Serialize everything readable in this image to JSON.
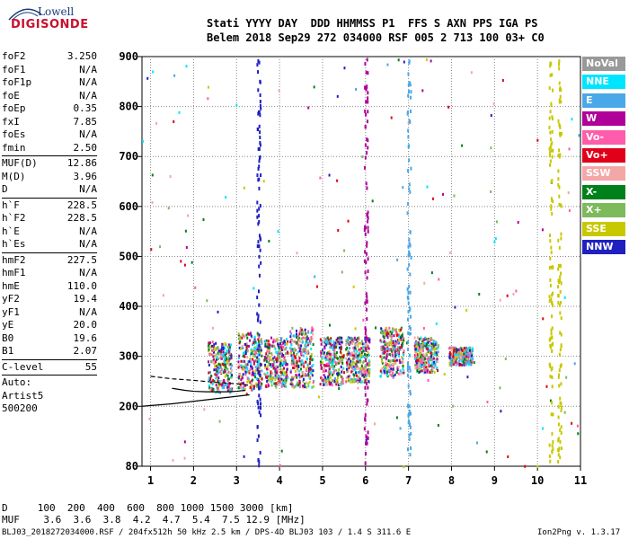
{
  "logo": {
    "line1": "Lowell",
    "line2": "DIGISONDE"
  },
  "header": {
    "line1": "Stati YYYY DAY  DDD HHMMSS P1  FFS S AXN PPS IGA PS",
    "line2": "Belem 2018 Sep29 272 034000 RSF 005 2 713 100 03+ C0"
  },
  "params_group1": [
    {
      "label": "foF2",
      "value": "3.250"
    },
    {
      "label": "foF1",
      "value": "N/A"
    },
    {
      "label": "foF1p",
      "value": "N/A"
    },
    {
      "label": "foE",
      "value": "N/A"
    },
    {
      "label": "foEp",
      "value": "0.35"
    },
    {
      "label": "fxI",
      "value": "7.85"
    },
    {
      "label": "foEs",
      "value": "N/A"
    },
    {
      "label": "fmin",
      "value": "2.50"
    }
  ],
  "params_group2": [
    {
      "label": "MUF(D)",
      "value": "12.86"
    },
    {
      "label": "M(D)",
      "value": "3.96"
    },
    {
      "label": "D",
      "value": "N/A"
    }
  ],
  "params_group3": [
    {
      "label": "h`F",
      "value": "228.5"
    },
    {
      "label": "h`F2",
      "value": "228.5"
    },
    {
      "label": "h`E",
      "value": "N/A"
    },
    {
      "label": "h`Es",
      "value": "N/A"
    }
  ],
  "params_group4": [
    {
      "label": "hmF2",
      "value": "227.5"
    },
    {
      "label": "hmF1",
      "value": "N/A"
    },
    {
      "label": "hmE",
      "value": "110.0"
    },
    {
      "label": "yF2",
      "value": "19.4"
    },
    {
      "label": "yF1",
      "value": "N/A"
    },
    {
      "label": "yE",
      "value": "20.0"
    },
    {
      "label": "B0",
      "value": "19.6"
    },
    {
      "label": "B1",
      "value": "2.07"
    }
  ],
  "params_group5": [
    {
      "label": "C-level",
      "value": "55"
    }
  ],
  "auto_lines": [
    "Auto:",
    "Artist5",
    "500200"
  ],
  "footer": {
    "d_line": "D     100  200  400  600  800 1000 1500 3000 [km]",
    "muf_line": "MUF    3.6  3.6  3.8  4.2  4.7  5.4  7.5 12.9 [MHz]",
    "info_left": "BLJ03_2018272034000.RSF / 204fx512h 50 kHz 2.5 km / DPS-4D BLJ03 103 / 1.4 S 311.6 E",
    "info_right": "Ion2Png v. 1.3.17"
  },
  "legend": [
    {
      "label": "NoVal",
      "color": "#999999"
    },
    {
      "label": "NNE",
      "color": "#00e5ff"
    },
    {
      "label": "E",
      "color": "#4aa8e8"
    },
    {
      "label": "W",
      "color": "#b0009a"
    },
    {
      "label": "Vo-",
      "color": "#ff5cab"
    },
    {
      "label": "Vo+",
      "color": "#e0001a"
    },
    {
      "label": "SSW",
      "color": "#f4a7a7"
    },
    {
      "label": "X-",
      "color": "#00801a"
    },
    {
      "label": "X+",
      "color": "#7cba5c"
    },
    {
      "label": "SSE",
      "color": "#c8c800"
    },
    {
      "label": "NNW",
      "color": "#2020c0"
    }
  ],
  "chart_data": {
    "type": "scatter",
    "xlim": [
      0.8,
      11.0
    ],
    "ylim": [
      80,
      900
    ],
    "x_ticks": [
      1,
      2,
      3,
      4,
      5,
      6,
      7,
      8,
      9,
      10,
      11
    ],
    "y_ticks": [
      80,
      200,
      300,
      400,
      500,
      600,
      700,
      800,
      900
    ],
    "grid": true,
    "legend_position": "right",
    "traces": [
      {
        "label": "O-trace F2",
        "points": [
          [
            1.5,
            236
          ],
          [
            1.8,
            232
          ],
          [
            2.0,
            230
          ],
          [
            2.3,
            229
          ],
          [
            2.5,
            229
          ],
          [
            2.8,
            229
          ],
          [
            3.0,
            230
          ],
          [
            3.2,
            232
          ]
        ]
      },
      {
        "label": "X-trace F2",
        "points": [
          [
            1.0,
            260
          ],
          [
            1.5,
            255
          ],
          [
            2.0,
            252
          ],
          [
            2.5,
            248
          ],
          [
            3.0,
            245
          ],
          [
            3.3,
            242
          ]
        ]
      },
      {
        "label": "Lower virtual-height trace",
        "points": [
          [
            0.8,
            200
          ],
          [
            1.5,
            205
          ],
          [
            2.2,
            212
          ],
          [
            2.8,
            218
          ],
          [
            3.3,
            223
          ]
        ]
      }
    ],
    "echo_clusters": [
      {
        "x": 2.6,
        "h_min": 230,
        "h_max": 330
      },
      {
        "x": 3.3,
        "h_min": 235,
        "h_max": 350
      },
      {
        "x": 3.9,
        "h_min": 240,
        "h_max": 340
      },
      {
        "x": 4.5,
        "h_min": 240,
        "h_max": 360
      },
      {
        "x": 5.2,
        "h_min": 245,
        "h_max": 340
      },
      {
        "x": 5.8,
        "h_min": 250,
        "h_max": 340
      },
      {
        "x": 6.6,
        "h_min": 260,
        "h_max": 360
      },
      {
        "x": 7.4,
        "h_min": 270,
        "h_max": 340
      },
      {
        "x": 8.2,
        "h_min": 285,
        "h_max": 320
      }
    ]
  }
}
